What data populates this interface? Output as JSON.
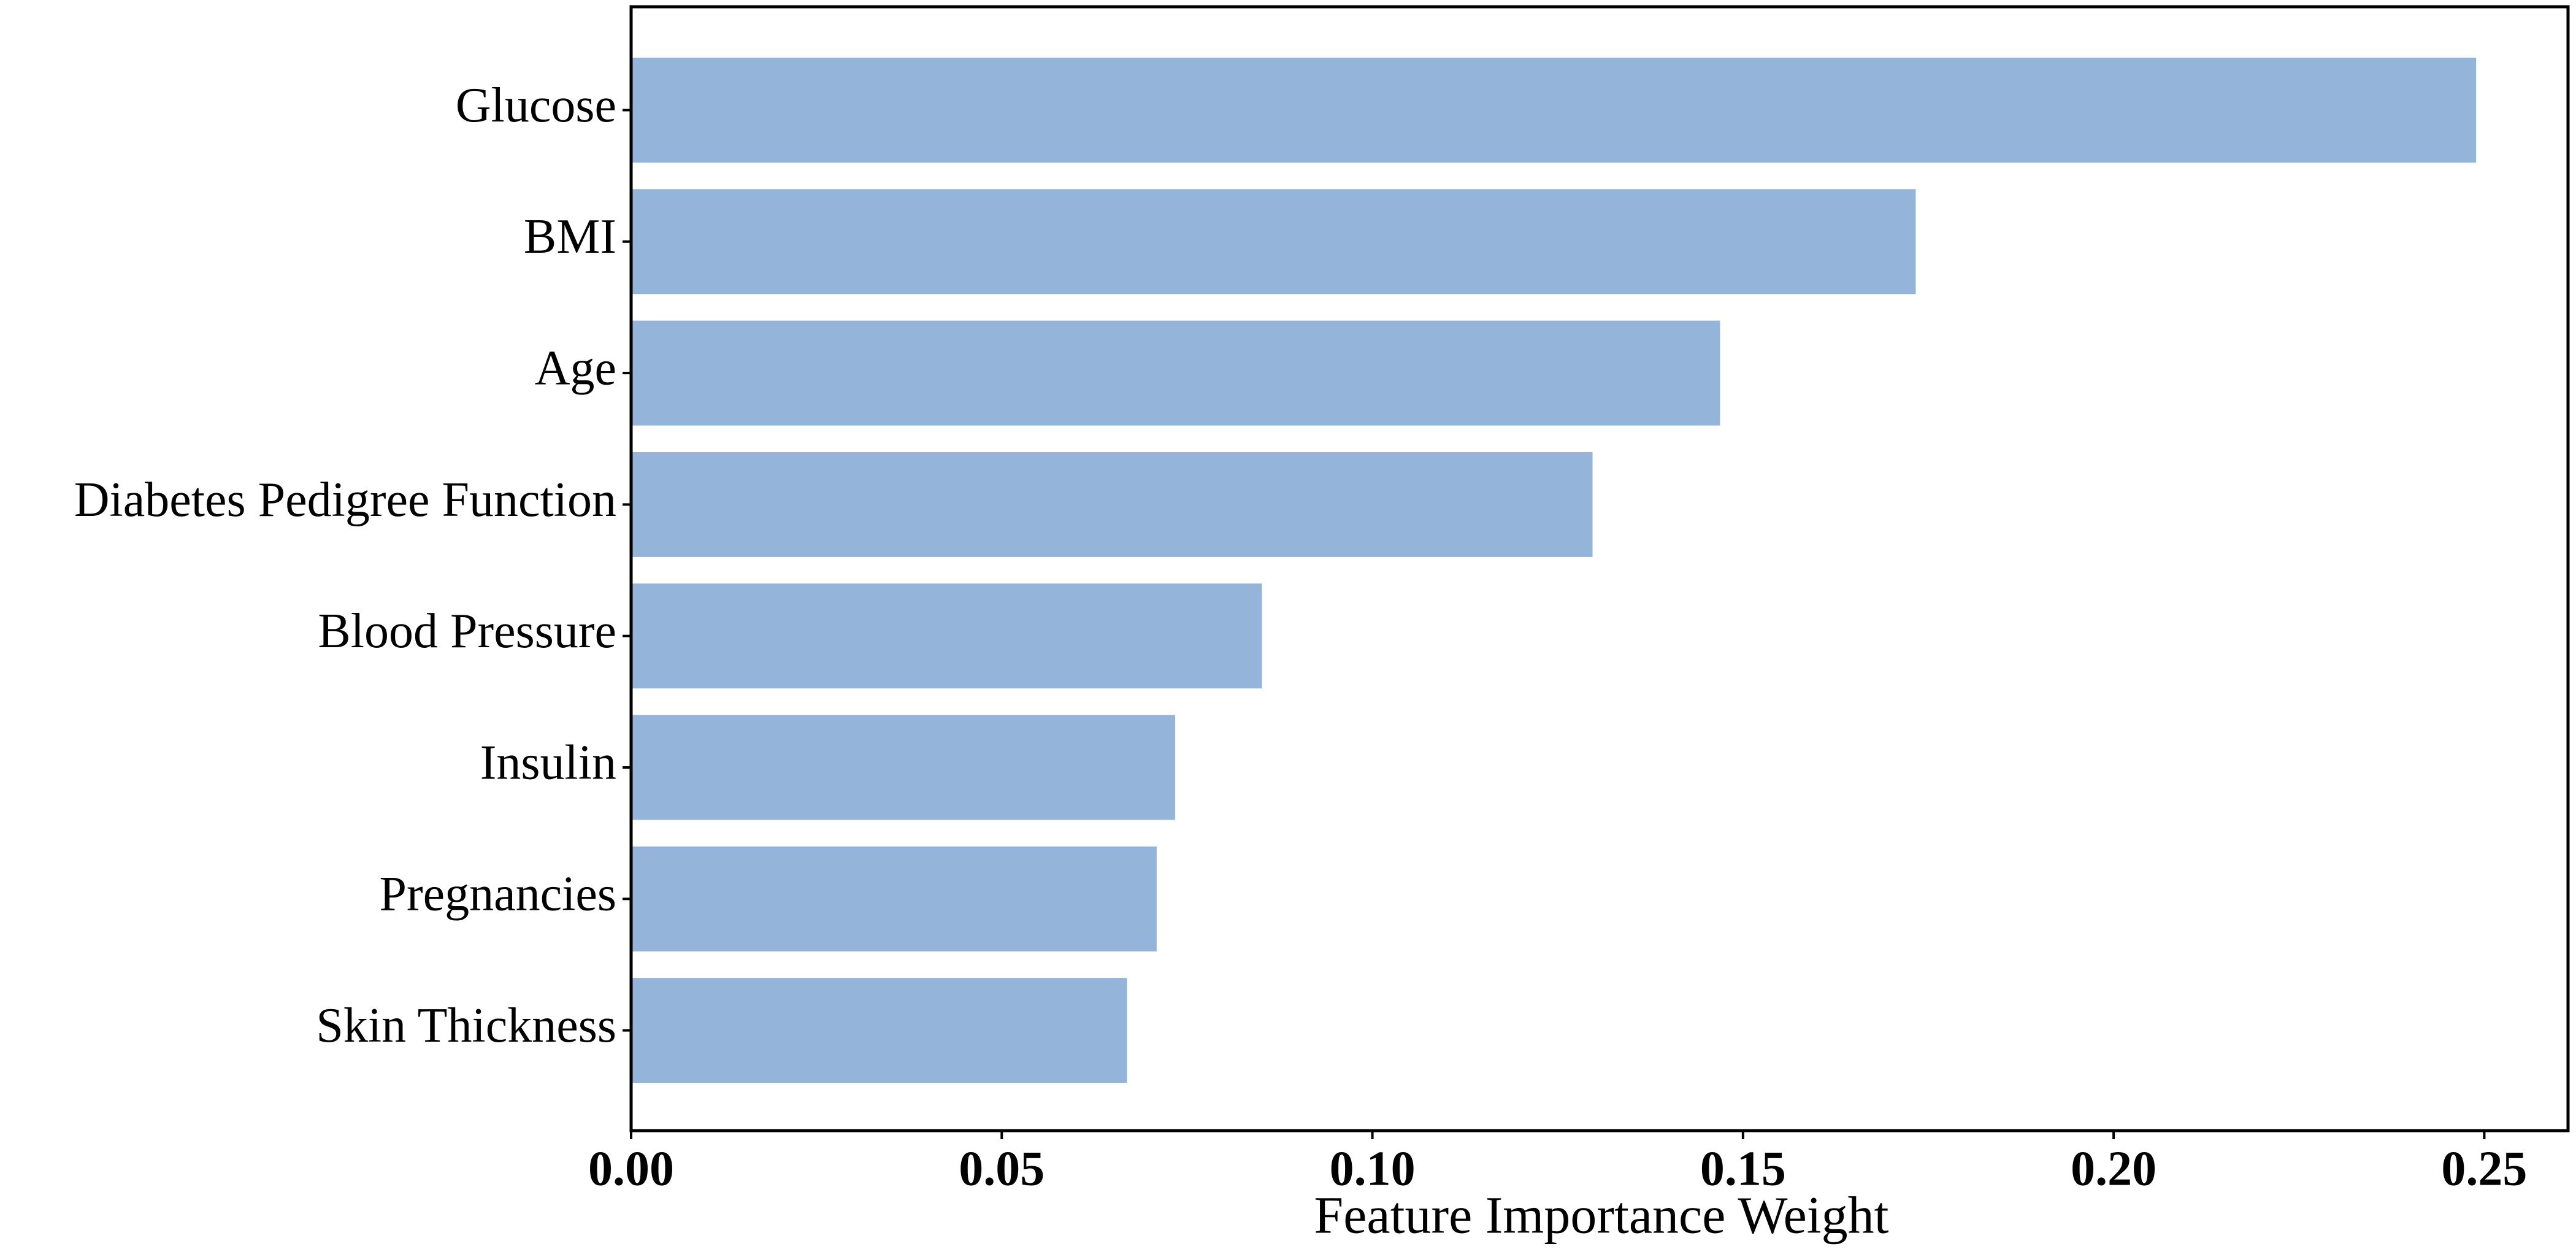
{
  "chart_data": {
    "type": "barh",
    "x_label": "Feature Importance Weight",
    "categories": [
      "Glucose",
      "BMI",
      "Age",
      "Diabetes Pedigree Function",
      "Blood Pressure",
      "Insulin",
      "Pregnancies",
      "Skin Thickness"
    ],
    "values": [
      0.2489,
      0.1733,
      0.1469,
      0.1297,
      0.0851,
      0.0734,
      0.0709,
      0.0669
    ],
    "color": "#94b4da",
    "xlim": [
      0,
      0.2613
    ],
    "xticks": [
      {
        "value": 0,
        "label": "0.00"
      },
      {
        "value": 0.05,
        "label": "0.05"
      },
      {
        "value": 0.1,
        "label": "0.10"
      },
      {
        "value": 0.15,
        "label": "0.15"
      },
      {
        "value": 0.2,
        "label": "0.20"
      },
      {
        "value": 0.25,
        "label": "0.25"
      }
    ]
  }
}
